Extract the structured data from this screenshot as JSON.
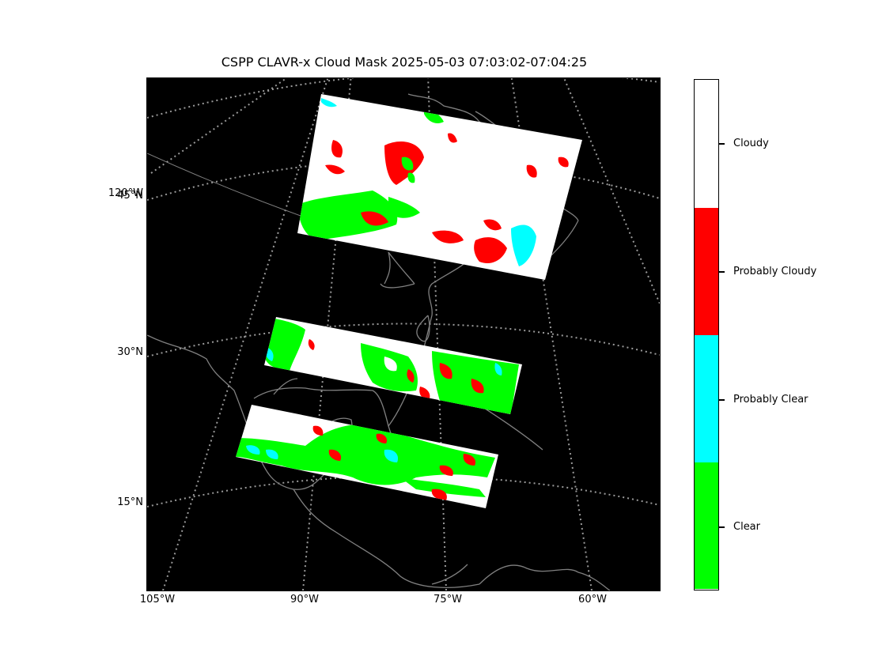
{
  "title": "CSPP CLAVR-x Cloud Mask 2025-05-03 07:03:02-07:04:25",
  "map": {
    "background_color": "#000000",
    "coastline_color": "#808080",
    "graticule_color": "#9a9a9a",
    "lat_labels": [
      "45°N",
      "30°N",
      "15°N"
    ],
    "extra_left_label": "120°W",
    "lon_labels": [
      "105°W",
      "90°W",
      "75°W",
      "60°W"
    ],
    "swaths": [
      "northern-swath",
      "middle-swath",
      "southern-swath"
    ]
  },
  "colorbar": {
    "categories": [
      {
        "label": "Cloudy",
        "color": "#ffffff"
      },
      {
        "label": "Probably Cloudy",
        "color": "#ff0000"
      },
      {
        "label": "Probably Clear",
        "color": "#00ffff"
      },
      {
        "label": "Clear",
        "color": "#00ff00"
      }
    ]
  }
}
